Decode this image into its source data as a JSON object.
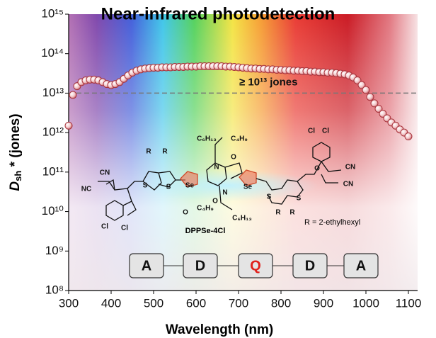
{
  "chart_data": {
    "type": "line",
    "title": "Near-infrared photodetection",
    "xlabel": "Wavelength (nm)",
    "ylabel": {
      "main": "D",
      "sub": "sh",
      "rest": " * (jones)"
    },
    "log_y": true,
    "xlim": [
      300,
      1100
    ],
    "xticks": [
      300,
      400,
      500,
      600,
      700,
      800,
      900,
      1000,
      1100
    ],
    "ylim": [
      100000000.0,
      1000000000000000.0
    ],
    "yticks": [
      {
        "value": 100000000.0,
        "label": "10⁸"
      },
      {
        "value": 1000000000.0,
        "label": "10⁹"
      },
      {
        "value": 10000000000.0,
        "label": "10¹⁰"
      },
      {
        "value": 100000000000.0,
        "label": "10¹¹"
      },
      {
        "value": 1000000000000.0,
        "label": "10¹²"
      },
      {
        "value": 10000000000000.0,
        "label": "10¹³"
      },
      {
        "value": 100000000000000.0,
        "label": "10¹⁴"
      },
      {
        "value": 1000000000000000.0,
        "label": "10¹⁵"
      }
    ],
    "reference_line": 10000000000000.0,
    "reference_label": "≥ 10¹³ jones",
    "series": [
      {
        "color": "#a8333b",
        "x": [
          300,
          310,
          320,
          330,
          340,
          350,
          360,
          370,
          380,
          390,
          400,
          410,
          420,
          430,
          440,
          450,
          460,
          470,
          480,
          490,
          500,
          510,
          520,
          530,
          540,
          550,
          560,
          570,
          580,
          590,
          600,
          610,
          620,
          630,
          640,
          650,
          660,
          670,
          680,
          690,
          700,
          710,
          720,
          730,
          740,
          750,
          760,
          770,
          780,
          790,
          800,
          810,
          820,
          830,
          840,
          850,
          860,
          870,
          880,
          890,
          900,
          910,
          920,
          930,
          940,
          950,
          960,
          970,
          980,
          990,
          1000,
          1010,
          1020,
          1030,
          1040,
          1050,
          1060,
          1070,
          1080,
          1090,
          1100
        ],
        "values": [
          1500000000000.0,
          9000000000000.0,
          15000000000000.0,
          19000000000000.0,
          21000000000000.0,
          22000000000000.0,
          22000000000000.0,
          21000000000000.0,
          19000000000000.0,
          17000000000000.0,
          16000000000000.0,
          17000000000000.0,
          19000000000000.0,
          23000000000000.0,
          28000000000000.0,
          33000000000000.0,
          37000000000000.0,
          40000000000000.0,
          42000000000000.0,
          43000000000000.0,
          44000000000000.0,
          44000000000000.0,
          45000000000000.0,
          45000000000000.0,
          45000000000000.0,
          46000000000000.0,
          46000000000000.0,
          46000000000000.0,
          47000000000000.0,
          47000000000000.0,
          47000000000000.0,
          48000000000000.0,
          48000000000000.0,
          48000000000000.0,
          48000000000000.0,
          48000000000000.0,
          48000000000000.0,
          47000000000000.0,
          47000000000000.0,
          46000000000000.0,
          45000000000000.0,
          44000000000000.0,
          43000000000000.0,
          42000000000000.0,
          42000000000000.0,
          41000000000000.0,
          41000000000000.0,
          40000000000000.0,
          40000000000000.0,
          39000000000000.0,
          39000000000000.0,
          38000000000000.0,
          38000000000000.0,
          37000000000000.0,
          37000000000000.0,
          36000000000000.0,
          36000000000000.0,
          35000000000000.0,
          35000000000000.0,
          34000000000000.0,
          34000000000000.0,
          33000000000000.0,
          33000000000000.0,
          32000000000000.0,
          31000000000000.0,
          30000000000000.0,
          28000000000000.0,
          25000000000000.0,
          21000000000000.0,
          16000000000000.0,
          12000000000000.0,
          8000000000000.0,
          5500000000000.0,
          4000000000000.0,
          3000000000000.0,
          2300000000000.0,
          1800000000000.0,
          1500000000000.0,
          1200000000000.0,
          1000000000000.0,
          800000000000.0
        ]
      }
    ],
    "molecule_name": "DPPSe-4Cl",
    "substituent_note": "R = 2-ethylhexyl",
    "atom_labels": [
      "CN",
      "NC",
      "Cl",
      "Cl",
      "R",
      "R",
      "S",
      "S",
      "Se",
      "C₆H₁₃",
      "C₄H₉",
      "O",
      "N",
      "N",
      "O",
      "C₄H₉",
      "C₆H₁₃",
      "Se",
      "S",
      "S",
      "R",
      "R",
      "O",
      "Cl",
      "Cl",
      "CN",
      "CN",
      "O"
    ],
    "blocks": [
      "A",
      "D",
      "Q",
      "D",
      "A"
    ]
  }
}
